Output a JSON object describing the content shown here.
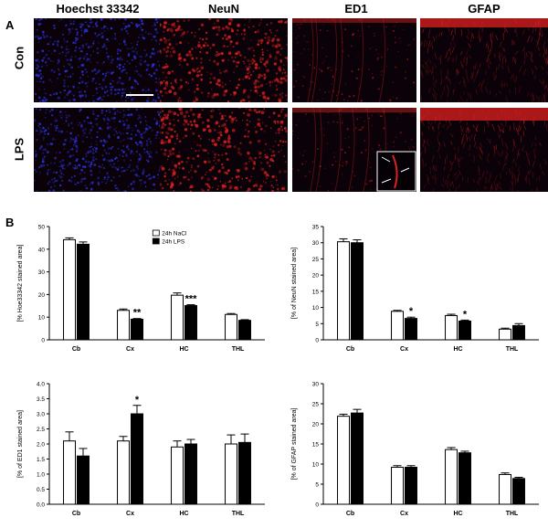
{
  "panel_a_label": "A",
  "panel_b_label": "B",
  "column_headers": [
    "Hoechst 33342",
    "NeuN",
    "ED1",
    "GFAP"
  ],
  "row_labels": [
    "Con",
    "LPS"
  ],
  "colors": {
    "hoechst": "#2d2fd8",
    "stain_red": "#e02020",
    "image_bg": "#0a0208",
    "bar_nacl": "#ffffff",
    "bar_lps": "#000000"
  },
  "chart_data": [
    {
      "type": "bar",
      "categories": [
        "Cb",
        "Cx",
        "HC",
        "THL"
      ],
      "ylabel": "[% Hoe33342 stained area]",
      "ylim": [
        0,
        50
      ],
      "yticks": [
        0,
        10,
        20,
        30,
        40,
        50
      ],
      "legend": [
        "24h NaCl",
        "24h LPS"
      ],
      "series": [
        {
          "name": "24h NaCl",
          "values": [
            44.2,
            13.0,
            19.7,
            11.2
          ],
          "errors": [
            0.8,
            0.6,
            1.0,
            0.4
          ]
        },
        {
          "name": "24h LPS",
          "values": [
            42.2,
            9.1,
            15.1,
            8.6
          ],
          "errors": [
            1.0,
            0.3,
            0.4,
            0.3
          ]
        }
      ],
      "annotations": [
        {
          "category": "Cx",
          "text": "**"
        },
        {
          "category": "HC",
          "text": "***"
        }
      ]
    },
    {
      "type": "bar",
      "categories": [
        "Cb",
        "Cx",
        "HC",
        "THL"
      ],
      "ylabel": "[% of NeuN stained area]",
      "ylim": [
        0,
        35
      ],
      "yticks": [
        0,
        5,
        10,
        15,
        20,
        25,
        30,
        35
      ],
      "series": [
        {
          "name": "24h NaCl",
          "values": [
            30.3,
            8.8,
            7.5,
            3.3
          ],
          "errors": [
            0.9,
            0.3,
            0.4,
            0.3
          ]
        },
        {
          "name": "24h LPS",
          "values": [
            30.0,
            6.6,
            5.8,
            4.4
          ],
          "errors": [
            0.9,
            0.4,
            0.3,
            0.6
          ]
        }
      ],
      "annotations": [
        {
          "category": "Cx",
          "text": "*"
        },
        {
          "category": "HC",
          "text": "*"
        }
      ]
    },
    {
      "type": "bar",
      "categories": [
        "Cb",
        "Cx",
        "HC",
        "THL"
      ],
      "ylabel": "[% of ED1 stained area]",
      "ylim": [
        0,
        4
      ],
      "yticks": [
        0,
        0.5,
        1.0,
        1.5,
        2.0,
        2.5,
        3.0,
        3.5,
        4.0
      ],
      "series": [
        {
          "name": "24h NaCl",
          "values": [
            2.1,
            2.1,
            1.9,
            2.0
          ],
          "errors": [
            0.3,
            0.15,
            0.2,
            0.3
          ]
        },
        {
          "name": "24h LPS",
          "values": [
            1.6,
            3.0,
            2.0,
            2.05
          ],
          "errors": [
            0.25,
            0.28,
            0.15,
            0.28
          ]
        }
      ],
      "annotations": [
        {
          "category": "Cx",
          "text": "*"
        }
      ]
    },
    {
      "type": "bar",
      "categories": [
        "Cb",
        "Cx",
        "HC",
        "THL"
      ],
      "ylabel": "[% of GFAP stained area]",
      "ylim": [
        0,
        30
      ],
      "yticks": [
        0,
        5,
        10,
        15,
        20,
        25,
        30
      ],
      "series": [
        {
          "name": "24h NaCl",
          "values": [
            21.9,
            9.2,
            13.6,
            7.4
          ],
          "errors": [
            0.5,
            0.4,
            0.5,
            0.4
          ]
        },
        {
          "name": "24h LPS",
          "values": [
            22.7,
            9.2,
            12.8,
            6.4
          ],
          "errors": [
            0.9,
            0.4,
            0.4,
            0.3
          ]
        }
      ],
      "annotations": []
    }
  ]
}
